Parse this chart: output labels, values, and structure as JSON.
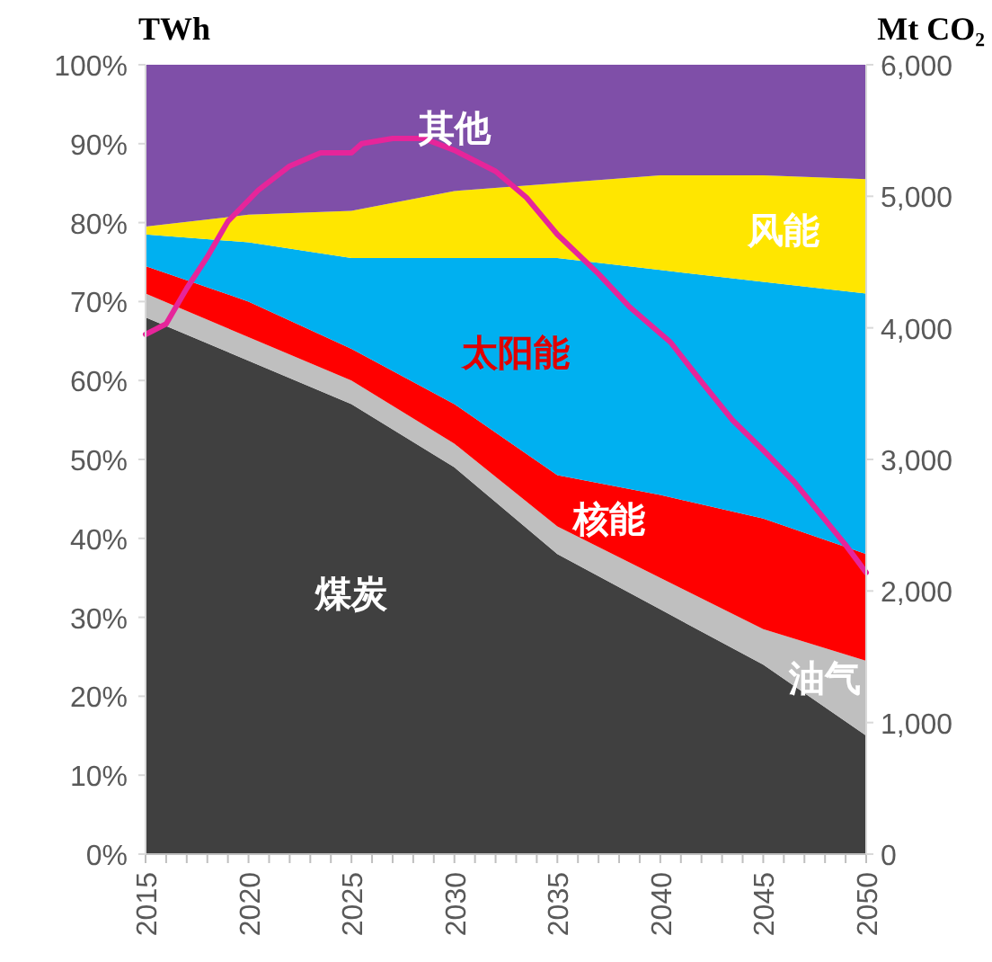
{
  "chart_data": {
    "type": "area",
    "stacked": true,
    "ylabel": "TWh",
    "y2label": "Mt CO₂",
    "x": [
      2015,
      2020,
      2025,
      2030,
      2035,
      2040,
      2045,
      2050
    ],
    "xlim": [
      2015,
      2050
    ],
    "xticks": [
      2015,
      {
        "value": 2016,
        "label": null
      },
      {
        "value": 2017,
        "label": null
      },
      {
        "value": 2018,
        "label": null
      },
      {
        "value": 2019,
        "label": null
      },
      2020,
      {
        "value": 2021,
        "label": null
      },
      {
        "value": 2022,
        "label": null
      },
      {
        "value": 2023,
        "label": null
      },
      {
        "value": 2024,
        "label": null
      },
      2025,
      {
        "value": 2026,
        "label": null
      },
      {
        "value": 2027,
        "label": null
      },
      {
        "value": 2028,
        "label": null
      },
      {
        "value": 2029,
        "label": null
      },
      2030,
      {
        "value": 2031,
        "label": null
      },
      {
        "value": 2032,
        "label": null
      },
      {
        "value": 2033,
        "label": null
      },
      {
        "value": 2034,
        "label": null
      },
      2035,
      {
        "value": 2036,
        "label": null
      },
      {
        "value": 2037,
        "label": null
      },
      {
        "value": 2038,
        "label": null
      },
      {
        "value": 2039,
        "label": null
      },
      2040,
      {
        "value": 2041,
        "label": null
      },
      {
        "value": 2042,
        "label": null
      },
      {
        "value": 2043,
        "label": null
      },
      {
        "value": 2044,
        "label": null
      },
      2045,
      {
        "value": 2046,
        "label": null
      },
      {
        "value": 2047,
        "label": null
      },
      {
        "value": 2048,
        "label": null
      },
      {
        "value": 2049,
        "label": null
      },
      2050
    ],
    "ylim": [
      0,
      100
    ],
    "yticks": [
      {
        "value": 0,
        "label": "0%"
      },
      {
        "value": 10,
        "label": "10%"
      },
      {
        "value": 20,
        "label": "20%"
      },
      {
        "value": 30,
        "label": "30%"
      },
      {
        "value": 40,
        "label": "40%"
      },
      {
        "value": 50,
        "label": "50%"
      },
      {
        "value": 60,
        "label": "60%"
      },
      {
        "value": 70,
        "label": "70%"
      },
      {
        "value": 80,
        "label": "80%"
      },
      {
        "value": 90,
        "label": "90%"
      },
      {
        "value": 100,
        "label": "100%"
      }
    ],
    "y2lim": [
      0,
      6000
    ],
    "y2ticks": [
      0,
      {
        "value": 1000,
        "label": "1,000"
      },
      {
        "value": 2000,
        "label": "2,000"
      },
      {
        "value": 3000,
        "label": "3,000"
      },
      {
        "value": 4000,
        "label": "4,000"
      },
      {
        "value": 5000,
        "label": "5,000"
      },
      {
        "value": 6000,
        "label": "6,000"
      }
    ],
    "grid": false,
    "series": [
      {
        "name": "煤炭",
        "color": "#404040",
        "values": [
          68,
          62.5,
          57,
          49,
          38,
          31,
          24,
          15
        ]
      },
      {
        "name": "油气",
        "color": "#bfbfbf",
        "values": [
          3,
          3,
          3,
          3,
          3.5,
          4,
          4.5,
          9.5
        ]
      },
      {
        "name": "核能",
        "color": "#ff0000",
        "values": [
          3.5,
          4.5,
          4,
          5,
          6.5,
          10.5,
          14,
          13.5
        ]
      },
      {
        "name": "太阳能",
        "color": "#00b0f0",
        "values": [
          4,
          7.5,
          11.5,
          18.5,
          27.5,
          28.5,
          30,
          33
        ]
      },
      {
        "name": "风能",
        "color": "#ffe600",
        "values": [
          1,
          3.5,
          6,
          8.5,
          9.5,
          12,
          13.5,
          14.5
        ]
      },
      {
        "name": "其他",
        "color": "#7f4fa8",
        "values": [
          20.5,
          19,
          18.5,
          16,
          15,
          14,
          14,
          14.5
        ]
      },
      {
        "type": "line",
        "axis": "y2",
        "color": "#e6259a",
        "x": [
          2015,
          2016,
          2017,
          2018,
          2019,
          2020.5,
          2022,
          2023.5,
          2025,
          2025.5,
          2027,
          2028.5,
          2030,
          2032,
          2033.5,
          2035,
          2037,
          2038.5,
          2040.5,
          2042,
          2043.5,
          2045,
          2046.5,
          2049,
          2050
        ],
        "values": [
          3950,
          4030,
          4300,
          4540,
          4810,
          5050,
          5230,
          5330,
          5330,
          5400,
          5440,
          5440,
          5350,
          5190,
          4990,
          4710,
          4410,
          4160,
          3890,
          3590,
          3300,
          3070,
          2830,
          2350,
          2140
        ]
      }
    ]
  }
}
